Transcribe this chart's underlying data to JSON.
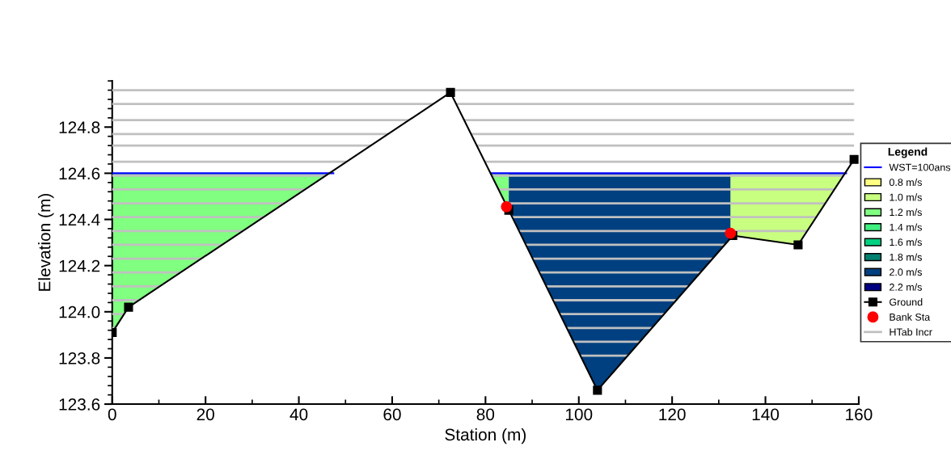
{
  "chart_data": {
    "type": "line",
    "xlabel": "Station (m)",
    "ylabel": "Elevation (m)",
    "xlim": [
      0,
      160
    ],
    "xticks": [
      0,
      20,
      40,
      60,
      80,
      100,
      120,
      140,
      160
    ],
    "ylim": [
      123.6,
      125.0
    ],
    "yticks": [
      {
        "value": 123.6,
        "label": "123.6"
      },
      {
        "value": 123.8,
        "label": "123.8"
      },
      {
        "value": 124.0,
        "label": "124.0"
      },
      {
        "value": 124.2,
        "label": "124.2"
      },
      {
        "value": 124.4,
        "label": "124.4"
      },
      {
        "value": 124.6,
        "label": "124.6"
      },
      {
        "value": 124.8,
        "label": "124.8"
      }
    ],
    "legend": "right",
    "legend_title": "Legend",
    "grid": false,
    "series": [
      {
        "name": "WST=100ans",
        "color": "#0000ff",
        "x": [
          0,
          47.4,
          64,
          81.3,
          157.3
        ],
        "values": [
          124.6,
          124.6,
          null,
          124.6,
          124.6
        ]
      },
      {
        "name": "0.8 m/s",
        "type": "area",
        "color": "#ffff80"
      },
      {
        "name": "1.0 m/s",
        "type": "area",
        "color": "#c8ff80",
        "x": [
          132.5,
          133,
          147,
          157.3
        ],
        "values": [
          124.6,
          124.6,
          124.6,
          124.6
        ]
      },
      {
        "name": "1.2 m/s",
        "type": "area",
        "color": "#80ff80",
        "x": [
          0,
          3.5,
          47.4,
          64,
          81.3,
          85
        ],
        "values": [
          124.6,
          124.6,
          124.6,
          null,
          124.6,
          124.6
        ]
      },
      {
        "name": "1.4 m/s",
        "type": "area",
        "color": "#40f080"
      },
      {
        "name": "1.6 m/s",
        "type": "area",
        "color": "#00d080"
      },
      {
        "name": "1.8 m/s",
        "type": "area",
        "color": "#008070"
      },
      {
        "name": "2.0 m/s",
        "type": "area",
        "color": "#004080",
        "x": [
          85,
          104,
          132.5
        ],
        "values": [
          124.6,
          124.6,
          124.6
        ]
      },
      {
        "name": "2.2 m/s",
        "type": "area",
        "color": "#000080"
      },
      {
        "name": "Ground",
        "color": "#000000",
        "marker": "square",
        "x": [
          0,
          3.5,
          72.5,
          85,
          104,
          133,
          147,
          159
        ],
        "values": [
          123.91,
          124.02,
          124.95,
          124.44,
          123.66,
          124.33,
          124.29,
          124.66
        ]
      },
      {
        "name": "Bank Sta",
        "type": "scatter",
        "color": "#ff0000",
        "marker": "circle",
        "x": [
          84.5,
          132.5
        ],
        "values": [
          124.455,
          124.34
        ]
      }
    ],
    "ref_lines": [
      {
        "axis": "y",
        "value": 124.96,
        "color": "#c0c0c0",
        "label": "HTab Incr"
      },
      {
        "axis": "y",
        "value": 124.9,
        "color": "#c0c0c0"
      },
      {
        "axis": "y",
        "value": 124.83,
        "color": "#c0c0c0"
      },
      {
        "axis": "y",
        "value": 124.77,
        "color": "#c0c0c0"
      },
      {
        "axis": "y",
        "value": 124.72,
        "color": "#c0c0c0"
      },
      {
        "axis": "y",
        "value": 124.65,
        "color": "#c0c0c0"
      },
      {
        "axis": "y",
        "value": 124.59,
        "color": "#c0c0c0"
      },
      {
        "axis": "y",
        "value": 124.53,
        "color": "#c0c0c0"
      },
      {
        "axis": "y",
        "value": 124.47,
        "color": "#c0c0c0"
      },
      {
        "axis": "y",
        "value": 124.41,
        "color": "#c0c0c0"
      },
      {
        "axis": "y",
        "value": 124.35,
        "color": "#c0c0c0"
      },
      {
        "axis": "y",
        "value": 124.29,
        "color": "#c0c0c0"
      },
      {
        "axis": "y",
        "value": 124.23,
        "color": "#c0c0c0"
      },
      {
        "axis": "y",
        "value": 124.17,
        "color": "#c0c0c0"
      },
      {
        "axis": "y",
        "value": 124.11,
        "color": "#c0c0c0"
      },
      {
        "axis": "y",
        "value": 124.05,
        "color": "#c0c0c0"
      },
      {
        "axis": "y",
        "value": 123.99,
        "color": "#c0c0c0"
      },
      {
        "axis": "y",
        "value": 123.93,
        "color": "#c0c0c0"
      },
      {
        "axis": "y",
        "value": 123.87,
        "color": "#c0c0c0"
      },
      {
        "axis": "y",
        "value": 123.81,
        "color": "#c0c0c0"
      }
    ]
  }
}
